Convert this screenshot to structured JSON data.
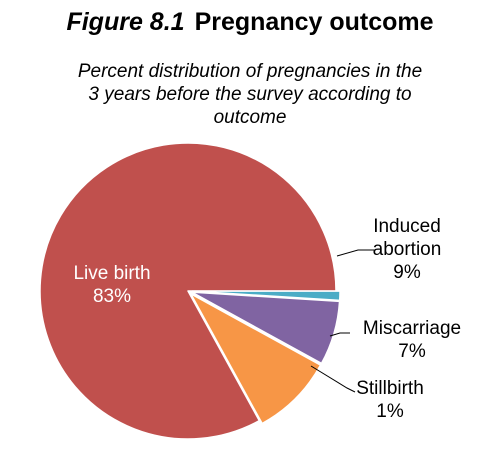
{
  "figure": {
    "number": "Figure 8.1",
    "title": "Pregnancy outcome",
    "subtitle_lines": [
      "Percent distribution of pregnancies in the",
      "3 years before the survey according to",
      "outcome"
    ]
  },
  "chart_data": {
    "type": "pie",
    "title": "Pregnancy outcome",
    "subtitle": "Percent distribution of pregnancies in the 3 years before the survey according to outcome",
    "start_angle_deg": 0,
    "direction": "counterclockwise",
    "slices": [
      {
        "label_lines": [
          "Live birth"
        ],
        "value": 83,
        "value_label": "83%",
        "color": "#c0504d",
        "label_position": "inside",
        "exploded": false
      },
      {
        "label_lines": [
          "Induced",
          "abortion"
        ],
        "value": 9,
        "value_label": "9%",
        "color": "#f79646",
        "label_position": "outside",
        "exploded": true
      },
      {
        "label_lines": [
          "Miscarriage"
        ],
        "value": 7,
        "value_label": "7%",
        "color": "#8064a2",
        "label_position": "outside",
        "exploded": true
      },
      {
        "label_lines": [
          "Stillbirth"
        ],
        "value": 1,
        "value_label": "1%",
        "color": "#4bacc6",
        "label_position": "outside",
        "exploded": true
      }
    ]
  }
}
